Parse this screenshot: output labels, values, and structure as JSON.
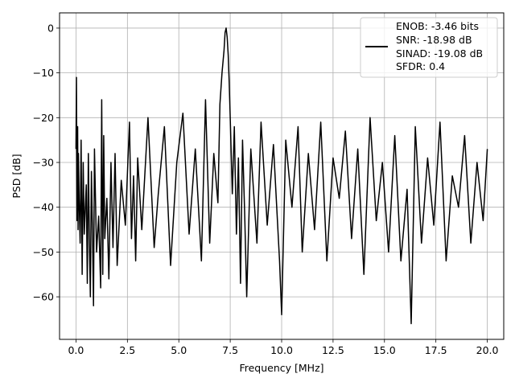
{
  "chart_data": {
    "type": "line",
    "title": "",
    "xlabel": "Frequency [MHz]",
    "ylabel": "PSD [dB]",
    "xlim": [
      -0.8,
      20.8
    ],
    "ylim": [
      -69.5,
      3.4
    ],
    "x_ticks": [
      0.0,
      2.5,
      5.0,
      7.5,
      10.0,
      12.5,
      15.0,
      17.5,
      20.0
    ],
    "x_tick_labels": [
      "0.0",
      "2.5",
      "5.0",
      "7.5",
      "10.0",
      "12.5",
      "15.0",
      "17.5",
      "20.0"
    ],
    "y_ticks": [
      0,
      -10,
      -20,
      -30,
      -40,
      -50,
      -60
    ],
    "y_tick_labels": [
      "0",
      "−10",
      "−20",
      "−30",
      "−40",
      "−50",
      "−60"
    ],
    "grid": true,
    "legend_position": "top-right",
    "legend_entries": [
      "ENOB: -3.46 bits",
      "SNR: -18.98 dB",
      "SINAD: -19.08 dB",
      "SFDR: 0.4"
    ],
    "line_color": "#000000",
    "series": [
      {
        "x": [
          0.0,
          0.02,
          0.05,
          0.08,
          0.1,
          0.12,
          0.15,
          0.2,
          0.25,
          0.3,
          0.35,
          0.4,
          0.5,
          0.55,
          0.6,
          0.65,
          0.7,
          0.75,
          0.8,
          0.85,
          0.9,
          1.0,
          1.1,
          1.2,
          1.25,
          1.3,
          1.35,
          1.4,
          1.5,
          1.6,
          1.7,
          1.8,
          1.9,
          2.0,
          2.2,
          2.4,
          2.6,
          2.7,
          2.8,
          2.9,
          3.0,
          3.2,
          3.5,
          3.8,
          4.0,
          4.3,
          4.6,
          4.9,
          5.2,
          5.5,
          5.8,
          6.1,
          6.3,
          6.5,
          6.7,
          6.9,
          7.0,
          7.1,
          7.2,
          7.25,
          7.3,
          7.35,
          7.4,
          7.45,
          7.5,
          7.6,
          7.7,
          7.8,
          7.9,
          8.0,
          8.1,
          8.2,
          8.3,
          8.5,
          8.8,
          9.0,
          9.3,
          9.6,
          9.9,
          10.0,
          10.2,
          10.5,
          10.8,
          11.0,
          11.3,
          11.6,
          11.9,
          12.2,
          12.5,
          12.8,
          13.1,
          13.4,
          13.7,
          14.0,
          14.3,
          14.6,
          14.9,
          15.2,
          15.5,
          15.8,
          16.1,
          16.3,
          16.5,
          16.8,
          17.1,
          17.4,
          17.7,
          18.0,
          18.3,
          18.6,
          18.9,
          19.2,
          19.5,
          19.8,
          20.0
        ],
        "y": [
          -27,
          -11,
          -43,
          -22,
          -45,
          -28,
          -38,
          -48,
          -25,
          -55,
          -30,
          -46,
          -35,
          -57,
          -28,
          -48,
          -60,
          -32,
          -45,
          -62,
          -27,
          -50,
          -42,
          -58,
          -16,
          -55,
          -24,
          -47,
          -38,
          -56,
          -30,
          -49,
          -28,
          -53,
          -34,
          -44,
          -21,
          -47,
          -33,
          -52,
          -29,
          -45,
          -20,
          -49,
          -37,
          -22,
          -53,
          -30,
          -19,
          -46,
          -27,
          -52,
          -16,
          -48,
          -28,
          -39,
          -17,
          -10,
          -5,
          -1,
          0,
          -2,
          -6,
          -12,
          -20,
          -37,
          -22,
          -46,
          -29,
          -57,
          -25,
          -41,
          -60,
          -27,
          -48,
          -21,
          -44,
          -26,
          -52,
          -64,
          -25,
          -40,
          -22,
          -50,
          -28,
          -45,
          -21,
          -52,
          -29,
          -38,
          -23,
          -47,
          -27,
          -55,
          -20,
          -43,
          -30,
          -50,
          -24,
          -52,
          -36,
          -66,
          -22,
          -48,
          -29,
          -44,
          -21,
          -52,
          -33,
          -40,
          -24,
          -48,
          -30,
          -43,
          -27
        ]
      }
    ]
  }
}
